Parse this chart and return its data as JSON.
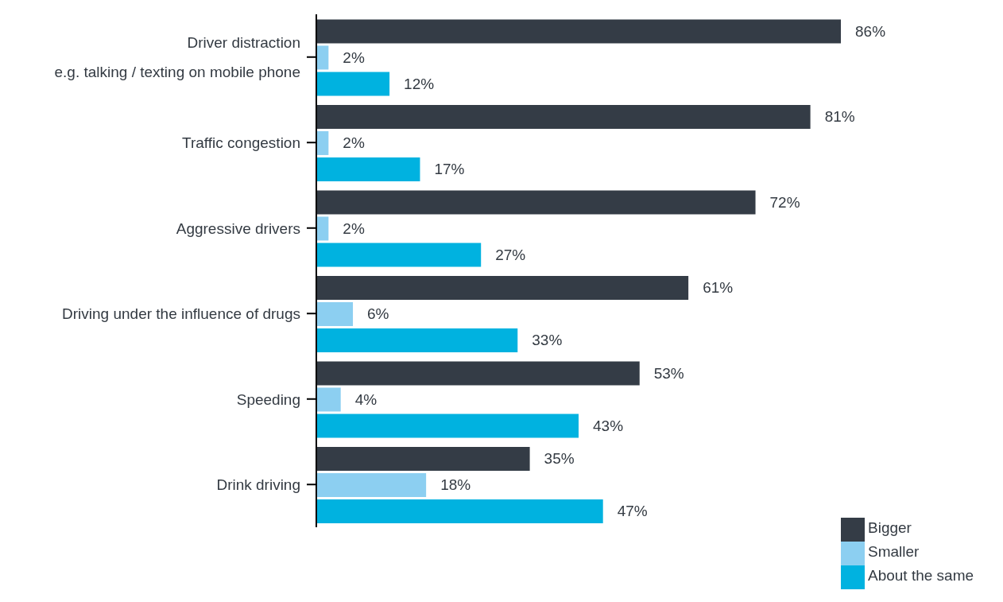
{
  "chart_data": {
    "type": "bar",
    "orientation": "horizontal",
    "categories": [
      "Driver distraction\ne.g. talking / texting on mobile phone",
      "Traffic congestion",
      "Aggressive drivers",
      "Driving under the influence of drugs",
      "Speeding",
      "Drink driving"
    ],
    "series": [
      {
        "name": "Bigger",
        "color": "#343c46",
        "values": [
          86,
          81,
          72,
          61,
          53,
          35
        ],
        "value_labels": [
          "86%",
          "81%",
          "72%",
          "61%",
          "53%",
          "35%"
        ]
      },
      {
        "name": "Smaller",
        "color": "#8ccff1",
        "values": [
          2,
          2,
          2,
          6,
          4,
          18
        ],
        "value_labels": [
          "2%",
          "2%",
          "2%",
          "6%",
          "4%",
          "18%"
        ]
      },
      {
        "name": "About the same",
        "color": "#00b2e0",
        "values": [
          12,
          17,
          27,
          33,
          43,
          47
        ],
        "value_labels": [
          "12%",
          "17%",
          "27%",
          "33%",
          "43%",
          "47%"
        ]
      }
    ],
    "legend": "bottom right"
  }
}
